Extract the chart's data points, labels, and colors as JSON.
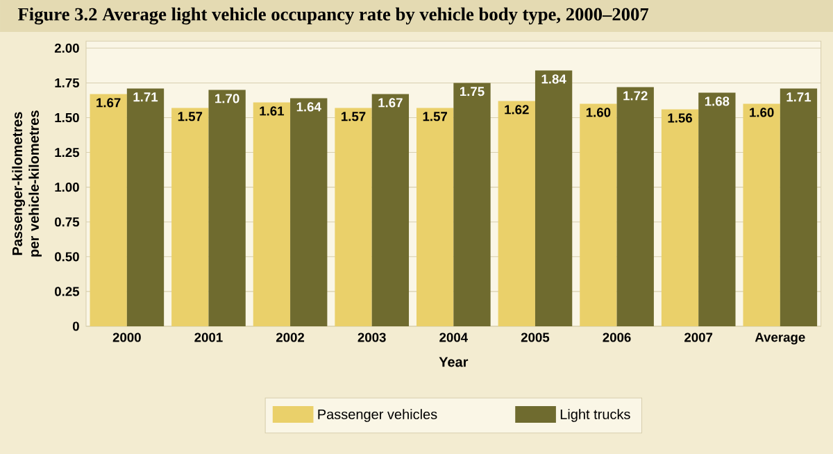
{
  "chart_data": {
    "type": "bar",
    "title": "Figure 3.2  Average light vehicle occupancy rate by vehicle body type, 2000–2007",
    "xlabel": "Year",
    "ylabel": "Passenger-kilometres per vehicle-kilometres",
    "categories": [
      "2000",
      "2001",
      "2002",
      "2003",
      "2004",
      "2005",
      "2006",
      "2007",
      "Average"
    ],
    "series": [
      {
        "name": "Passenger vehicles",
        "color": "#ead06a",
        "values": [
          1.67,
          1.57,
          1.61,
          1.57,
          1.57,
          1.62,
          1.6,
          1.56,
          1.6
        ],
        "value_labels": [
          "1.67",
          "1.57",
          "1.61",
          "1.57",
          "1.57",
          "1.62",
          "1.60",
          "1.56",
          "1.60"
        ]
      },
      {
        "name": "Light trucks",
        "color": "#6f6b2f",
        "values": [
          1.71,
          1.7,
          1.64,
          1.67,
          1.75,
          1.84,
          1.72,
          1.68,
          1.71
        ],
        "value_labels": [
          "1.71",
          "1.70",
          "1.64",
          "1.67",
          "1.75",
          "1.84",
          "1.72",
          "1.68",
          "1.71"
        ]
      }
    ],
    "ylim": [
      0,
      2.05
    ],
    "yticks": [
      0,
      {
        "value": 0.25,
        "label": "0.25"
      },
      {
        "value": 0.5,
        "label": "0.50"
      },
      {
        "value": 0.75,
        "label": "0.75"
      },
      {
        "value": 1,
        "label": "1.00"
      },
      {
        "value": 1.25,
        "label": "1.25"
      },
      {
        "value": 1.5,
        "label": "1.50"
      },
      {
        "value": 1.75,
        "label": "1.75"
      },
      {
        "value": 2,
        "label": "2.00"
      }
    ],
    "grid": "y",
    "legend": "bottom"
  }
}
